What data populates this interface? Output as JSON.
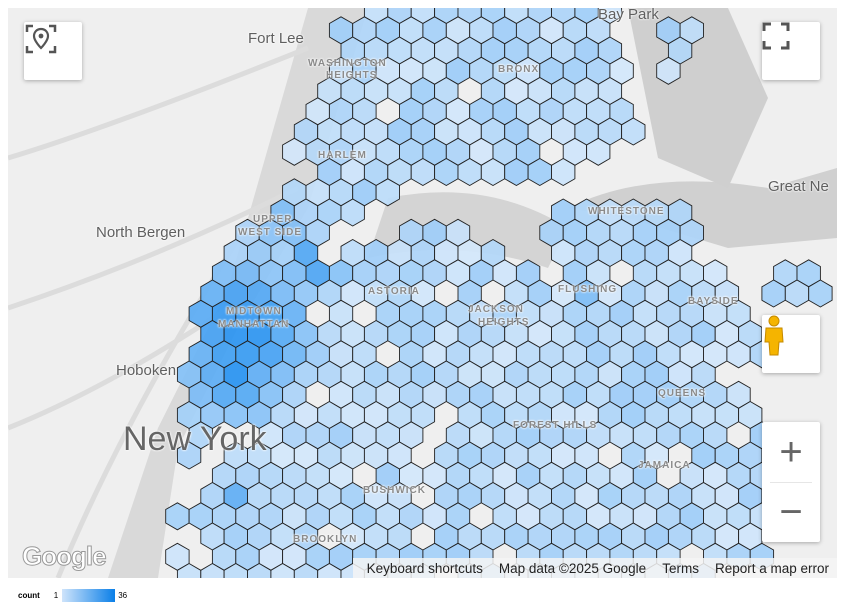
{
  "map": {
    "labels": {
      "fort_lee": "Fort Lee",
      "north_bergen": "North Bergen",
      "hoboken": "Hoboken",
      "new_york": "New York",
      "great_neck": "Great Ne",
      "bay_park": "Bay Park",
      "washington_heights_1": "WASHINGTON",
      "washington_heights_2": "HEIGHTS",
      "bronx": "BRONX",
      "harlem": "HARLEM",
      "upper_west_side_1": "UPPER",
      "upper_west_side_2": "WEST SIDE",
      "midtown_1": "MIDTOWN",
      "midtown_2": "MANHATTAN",
      "whitestone": "WHITESTONE",
      "astoria": "ASTORIA",
      "jackson_heights_1": "JACKSON",
      "jackson_heights_2": "HEIGHTS",
      "flushing": "FLUSHING",
      "bayside": "BAYSIDE",
      "queens": "QUEENS",
      "forest_hills": "FOREST HILLS",
      "jamaica": "JAMAICA",
      "bushwick": "BUSHWICK",
      "brooklyn": "BROOKLYN"
    },
    "attribution": {
      "keyboard_shortcuts": "Keyboard shortcuts",
      "map_data": "Map data ©2025 Google",
      "terms": "Terms",
      "report": "Report a map error"
    },
    "logo": "Google",
    "controls": {
      "zoom_in": "+",
      "zoom_out": "−"
    },
    "icons": [
      "my-location-icon",
      "fullscreen-icon",
      "pegman-icon"
    ],
    "hex_color_low": "#d3e7fb",
    "hex_color_high": "#1a8cf0"
  },
  "legend": {
    "title": "count",
    "min": "1",
    "max": "36"
  }
}
